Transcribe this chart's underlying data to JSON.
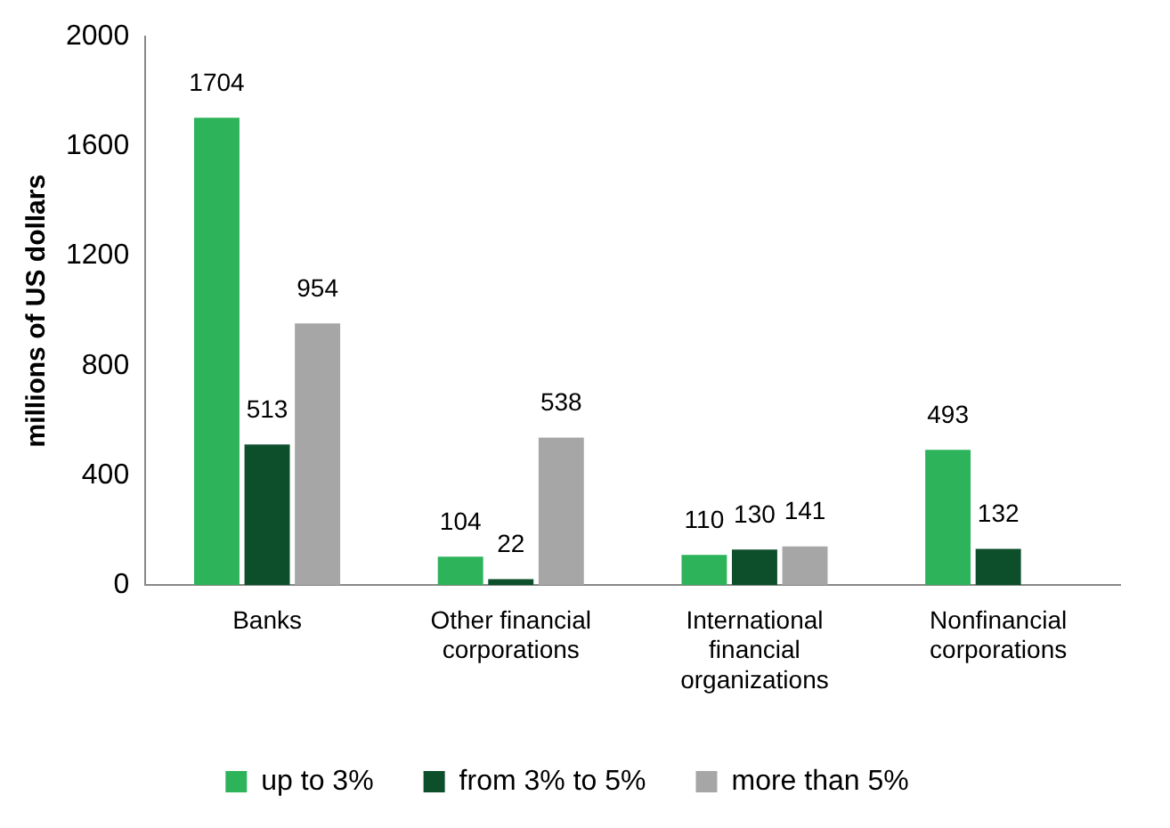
{
  "chart_data": {
    "type": "bar",
    "ylabel": "millions of US dollars",
    "categories": [
      "Banks",
      "Other financial corporations",
      "International financial organizations",
      "Nonfinancial corporations"
    ],
    "series": [
      {
        "name": "up to 3%",
        "color": "#2db35a",
        "values": [
          1704,
          104,
          110,
          493
        ]
      },
      {
        "name": "from 3% to 5%",
        "color": "#0d4f2b",
        "values": [
          513,
          22,
          130,
          132
        ]
      },
      {
        "name": "more than 5%",
        "color": "#a6a6a6",
        "values": [
          954,
          538,
          141,
          null
        ]
      }
    ],
    "ylim": [
      0,
      2000
    ],
    "yticks": [
      0,
      400,
      800,
      1200,
      1600,
      2000
    ],
    "grid": false,
    "legend": "bottom",
    "data_labels": true
  }
}
